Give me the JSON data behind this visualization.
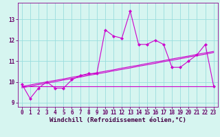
{
  "xlabel": "Windchill (Refroidissement éolien,°C)",
  "bg_color": "#d6f5f0",
  "line_color": "#cc00cc",
  "grid_color": "#99dddd",
  "x_data": [
    0,
    1,
    2,
    3,
    4,
    5,
    6,
    7,
    8,
    9,
    10,
    11,
    12,
    13,
    14,
    15,
    16,
    17,
    18,
    19,
    20,
    21,
    22,
    23
  ],
  "y_main": [
    9.9,
    9.2,
    9.7,
    10.0,
    9.7,
    9.7,
    10.1,
    10.3,
    10.4,
    10.4,
    12.5,
    12.2,
    12.1,
    13.4,
    11.8,
    11.8,
    12.0,
    11.8,
    10.7,
    10.7,
    11.0,
    11.3,
    11.8,
    9.8
  ],
  "y_reg1": [
    9.72,
    9.79,
    9.87,
    9.94,
    10.01,
    10.09,
    10.16,
    10.23,
    10.31,
    10.38,
    10.45,
    10.53,
    10.6,
    10.67,
    10.75,
    10.82,
    10.89,
    10.97,
    11.04,
    11.11,
    11.19,
    11.26,
    11.33,
    11.41
  ],
  "y_reg2": [
    9.78,
    9.85,
    9.93,
    10.0,
    10.07,
    10.14,
    10.22,
    10.29,
    10.36,
    10.44,
    10.51,
    10.58,
    10.66,
    10.73,
    10.8,
    10.88,
    10.95,
    11.02,
    11.1,
    11.17,
    11.24,
    11.32,
    11.39,
    11.46
  ],
  "y_flat": [
    9.8,
    9.8,
    9.8,
    9.8,
    9.8,
    9.8,
    9.8,
    9.8,
    9.8,
    9.8,
    9.8,
    9.8,
    9.8,
    9.8,
    9.8,
    9.8,
    9.8,
    9.8,
    9.8,
    9.8,
    9.8,
    9.8,
    9.8,
    9.8
  ],
  "ylim": [
    8.8,
    13.8
  ],
  "yticks": [
    9,
    10,
    11,
    12,
    13
  ],
  "xticks": [
    0,
    1,
    2,
    3,
    4,
    5,
    6,
    7,
    8,
    9,
    10,
    11,
    12,
    13,
    14,
    15,
    16,
    17,
    18,
    19,
    20,
    21,
    22,
    23
  ],
  "tick_fontsize": 5.5,
  "label_fontsize": 6.5
}
